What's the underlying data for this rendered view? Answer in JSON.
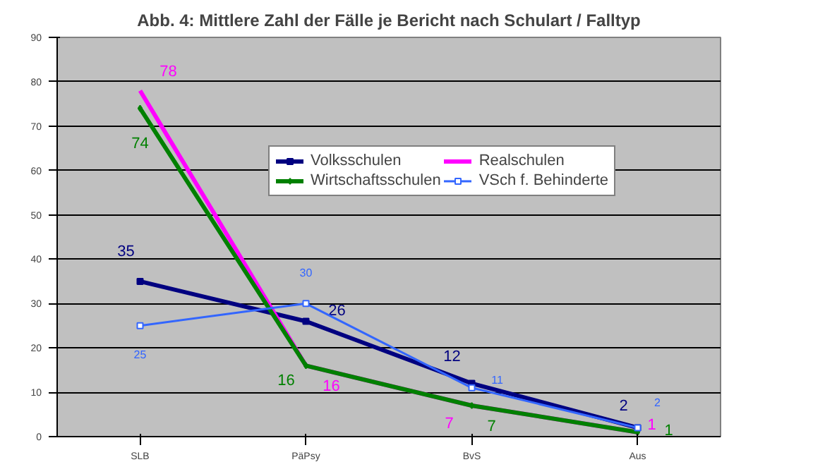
{
  "chart_data": {
    "type": "line",
    "title": "Abb. 4: Mittlere Zahl der Fälle je Bericht nach Schulart / Falltyp",
    "categories": [
      "SLB",
      "PäPsy",
      "BvS",
      "Aus"
    ],
    "series": [
      {
        "name": "Volksschulen",
        "color": "#000080",
        "values": [
          35,
          26,
          12,
          2
        ],
        "marker": "square"
      },
      {
        "name": "Realschulen",
        "color": "#ff00ff",
        "values": [
          78,
          16,
          7,
          1
        ],
        "marker": "none"
      },
      {
        "name": "Wirtschaftsschulen",
        "color": "#008000",
        "values": [
          74,
          16,
          7,
          1
        ],
        "marker": "diamond"
      },
      {
        "name": "VSch f. Behinderte",
        "color": "#3366ff",
        "values": [
          25,
          30,
          11,
          2
        ],
        "marker": "square"
      }
    ],
    "ylim": [
      0,
      90
    ],
    "yticks": [
      0,
      10,
      20,
      30,
      40,
      50,
      60,
      70,
      80,
      90
    ],
    "grid": "y",
    "legend": "top right",
    "data_labels": true
  }
}
